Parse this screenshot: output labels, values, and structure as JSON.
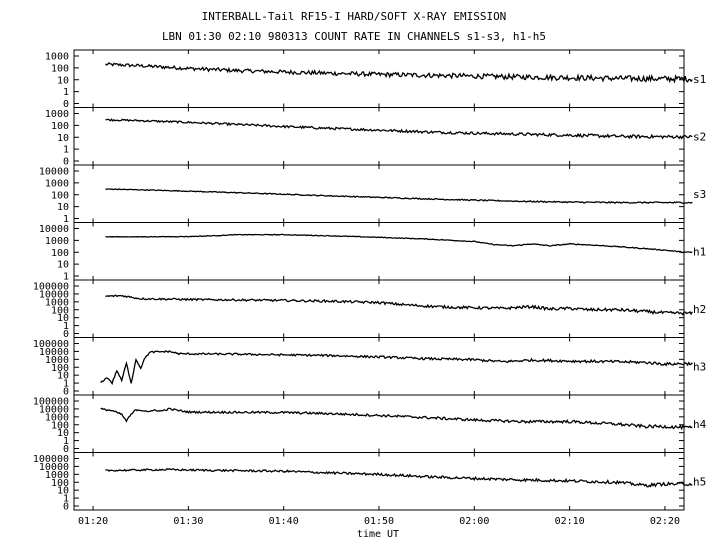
{
  "chart_data": {
    "type": "line",
    "title": "INTERBALL-Tail RF15-I HARD/SOFT X-RAY EMISSION",
    "subtitle": "LBN 01:30 02:10 980313  COUNT RATE IN CHANNELS s1-s3, h1-h5",
    "xlabel": "time UT",
    "x_ticks": [
      "01:20",
      "01:30",
      "01:40",
      "01:50",
      "02:00",
      "02:10",
      "02:20"
    ],
    "x_range": [
      "01:18",
      "02:22"
    ],
    "y_scale": "log",
    "panels": [
      {
        "name": "s1",
        "y_ticks": [
          "1000",
          "100",
          "10",
          "1",
          "0"
        ],
        "series": [
          [
            1.3,
            200
          ],
          [
            5,
            150
          ],
          [
            10,
            90
          ],
          [
            15,
            60
          ],
          [
            20,
            45
          ],
          [
            25,
            35
          ],
          [
            30,
            28
          ],
          [
            35,
            24
          ],
          [
            40,
            20
          ],
          [
            45,
            17
          ],
          [
            50,
            15
          ],
          [
            55,
            13
          ],
          [
            60,
            12
          ],
          [
            63,
            12
          ]
        ],
        "noise": 0.25
      },
      {
        "name": "s2",
        "y_ticks": [
          "1000",
          "100",
          "10",
          "1",
          "0"
        ],
        "series": [
          [
            1.3,
            300
          ],
          [
            5,
            250
          ],
          [
            10,
            180
          ],
          [
            15,
            120
          ],
          [
            20,
            80
          ],
          [
            25,
            55
          ],
          [
            30,
            40
          ],
          [
            35,
            28
          ],
          [
            40,
            22
          ],
          [
            45,
            18
          ],
          [
            50,
            15
          ],
          [
            55,
            12
          ],
          [
            60,
            11
          ],
          [
            63,
            11
          ]
        ],
        "noise": 0.14
      },
      {
        "name": "s3",
        "y_ticks": [
          "10000",
          "1000",
          "100",
          "10",
          "1"
        ],
        "series": [
          [
            1.3,
            300
          ],
          [
            5,
            260
          ],
          [
            10,
            200
          ],
          [
            15,
            150
          ],
          [
            20,
            110
          ],
          [
            25,
            80
          ],
          [
            30,
            60
          ],
          [
            35,
            45
          ],
          [
            40,
            35
          ],
          [
            45,
            28
          ],
          [
            50,
            24
          ],
          [
            55,
            22
          ],
          [
            60,
            22
          ],
          [
            63,
            22
          ]
        ],
        "noise": 0.06
      },
      {
        "name": "h1",
        "y_ticks": [
          "10000",
          "1000",
          "100",
          "10",
          "1"
        ],
        "series": [
          [
            1.3,
            2000
          ],
          [
            5,
            2000
          ],
          [
            10,
            2100
          ],
          [
            13,
            2500
          ],
          [
            15,
            3000
          ],
          [
            20,
            3000
          ],
          [
            25,
            2400
          ],
          [
            30,
            1800
          ],
          [
            35,
            1300
          ],
          [
            40,
            800
          ],
          [
            42,
            450
          ],
          [
            44,
            350
          ],
          [
            46,
            500
          ],
          [
            48,
            350
          ],
          [
            50,
            500
          ],
          [
            52,
            420
          ],
          [
            55,
            300
          ],
          [
            58,
            200
          ],
          [
            60,
            150
          ],
          [
            62,
            100
          ],
          [
            63,
            100
          ]
        ],
        "noise": 0.04
      },
      {
        "name": "h2",
        "y_ticks": [
          "100000",
          "10000",
          "1000",
          "100",
          "10",
          "1",
          "0"
        ],
        "series": [
          [
            1.3,
            5000
          ],
          [
            3,
            6000
          ],
          [
            5,
            2500
          ],
          [
            10,
            2000
          ],
          [
            20,
            1500
          ],
          [
            25,
            1200
          ],
          [
            30,
            800
          ],
          [
            33,
            400
          ],
          [
            36,
            250
          ],
          [
            38,
            200
          ],
          [
            40,
            180
          ],
          [
            43,
            150
          ],
          [
            46,
            250
          ],
          [
            48,
            120
          ],
          [
            50,
            150
          ],
          [
            52,
            100
          ],
          [
            55,
            100
          ],
          [
            58,
            60
          ],
          [
            60,
            40
          ],
          [
            63,
            35
          ]
        ],
        "noise": 0.2
      },
      {
        "name": "h3",
        "y_ticks": [
          "100000",
          "10000",
          "1000",
          "100",
          "10",
          "1",
          "0"
        ],
        "series": [
          [
            0.8,
            1.2
          ],
          [
            1.5,
            5
          ],
          [
            2,
            1
          ],
          [
            2.5,
            40
          ],
          [
            3,
            2
          ],
          [
            3.5,
            300
          ],
          [
            4,
            1
          ],
          [
            4.5,
            1000
          ],
          [
            5,
            80
          ],
          [
            5.5,
            2000
          ],
          [
            6,
            8000
          ],
          [
            8,
            10000
          ],
          [
            9,
            5000
          ],
          [
            15,
            4500
          ],
          [
            25,
            3000
          ],
          [
            30,
            2000
          ],
          [
            35,
            1200
          ],
          [
            40,
            900
          ],
          [
            43,
            500
          ],
          [
            46,
            800
          ],
          [
            50,
            600
          ],
          [
            55,
            500
          ],
          [
            58,
            400
          ],
          [
            60,
            250
          ],
          [
            63,
            300
          ]
        ],
        "noise": 0.18
      },
      {
        "name": "h4",
        "y_ticks": [
          "100000",
          "10000",
          "1000",
          "100",
          "10",
          "1",
          "0"
        ],
        "series": [
          [
            0.8,
            10000
          ],
          [
            2,
            6000
          ],
          [
            3,
            2000
          ],
          [
            3.5,
            300
          ],
          [
            4,
            2000
          ],
          [
            4.5,
            8000
          ],
          [
            5.5,
            6000
          ],
          [
            6,
            4000
          ],
          [
            6.5,
            8000
          ],
          [
            7,
            5000
          ],
          [
            8,
            10000
          ],
          [
            10,
            4000
          ],
          [
            20,
            3500
          ],
          [
            25,
            2500
          ],
          [
            30,
            1500
          ],
          [
            35,
            800
          ],
          [
            40,
            400
          ],
          [
            45,
            250
          ],
          [
            50,
            250
          ],
          [
            55,
            120
          ],
          [
            58,
            60
          ],
          [
            60,
            60
          ],
          [
            63,
            40
          ]
        ],
        "noise": 0.2
      },
      {
        "name": "h5",
        "y_ticks": [
          "100000",
          "10000",
          "1000",
          "100",
          "10",
          "1",
          "0"
        ],
        "series": [
          [
            1.3,
            3000
          ],
          [
            8,
            4000
          ],
          [
            10,
            3500
          ],
          [
            20,
            2500
          ],
          [
            25,
            1500
          ],
          [
            30,
            1000
          ],
          [
            35,
            500
          ],
          [
            40,
            300
          ],
          [
            45,
            200
          ],
          [
            50,
            150
          ],
          [
            55,
            100
          ],
          [
            58,
            40
          ],
          [
            60,
            60
          ],
          [
            63,
            60
          ]
        ],
        "noise": 0.2
      }
    ]
  }
}
